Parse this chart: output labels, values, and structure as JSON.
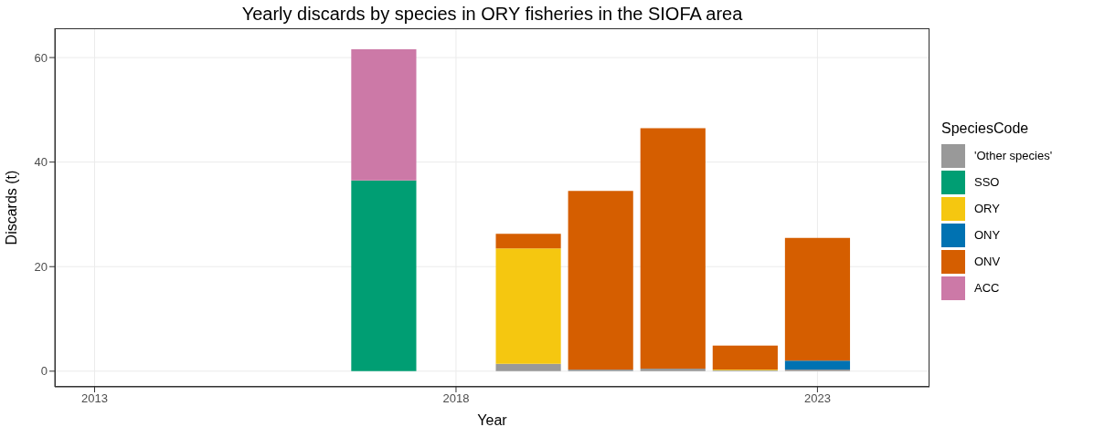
{
  "chart_data": {
    "type": "bar",
    "title": "Yearly discards by species in ORY fisheries in the SIOFA area",
    "xlabel": "Year",
    "ylabel": "Discards (t)",
    "legend_title": "SpeciesCode",
    "x": [
      2017,
      2019,
      2020,
      2021,
      2022,
      2023
    ],
    "stacked": true,
    "series": [
      {
        "name": "'Other species'",
        "color": "#999999",
        "values": [
          null,
          1.4,
          0.3,
          0.5,
          0.2,
          0.3
        ]
      },
      {
        "name": "SSO",
        "color": "#009e73",
        "values": [
          36.5,
          null,
          null,
          null,
          null,
          null
        ]
      },
      {
        "name": "ORY",
        "color": "#f5c710",
        "values": [
          null,
          22.1,
          null,
          null,
          0.1,
          null
        ]
      },
      {
        "name": "ONY",
        "color": "#0072b2",
        "values": [
          null,
          null,
          null,
          null,
          null,
          1.7
        ]
      },
      {
        "name": "ONV",
        "color": "#d55e00",
        "values": [
          null,
          2.8,
          34.2,
          46.0,
          4.6,
          23.5
        ]
      },
      {
        "name": "ACC",
        "color": "#cc79a7",
        "values": [
          25.1,
          null,
          null,
          null,
          null,
          null
        ]
      }
    ],
    "xlim": [
      2012.45,
      2024.55
    ],
    "xticks": [
      2013,
      2018,
      2023
    ],
    "ylim": [
      -3,
      65.6
    ],
    "yticks": [
      0,
      20,
      40,
      60
    ],
    "grid": true,
    "legend": "right"
  }
}
